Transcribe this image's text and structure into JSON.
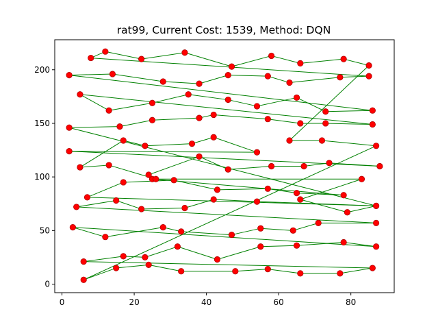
{
  "chart_data": {
    "type": "line",
    "title": "rat99, Current Cost: 1539, Method: DQN",
    "xlabel": "",
    "ylabel": "",
    "xlim": [
      -2,
      92
    ],
    "ylim": [
      -8,
      228
    ],
    "xticks": [
      0,
      20,
      40,
      60,
      80
    ],
    "yticks": [
      0,
      50,
      100,
      150,
      200
    ],
    "grid": false,
    "line_color": "#008000",
    "marker_color": "#ff0000",
    "marker_edge_color": "#b00000",
    "tour": [
      [
        6,
        4
      ],
      [
        15,
        15
      ],
      [
        24,
        18
      ],
      [
        33,
        12
      ],
      [
        48,
        12
      ],
      [
        57,
        14
      ],
      [
        66,
        10
      ],
      [
        77,
        10
      ],
      [
        86,
        15
      ],
      [
        6,
        21
      ],
      [
        17,
        26
      ],
      [
        23,
        25
      ],
      [
        32,
        35
      ],
      [
        43,
        23
      ],
      [
        55,
        35
      ],
      [
        65,
        36
      ],
      [
        78,
        39
      ],
      [
        87,
        35
      ],
      [
        3,
        53
      ],
      [
        12,
        44
      ],
      [
        28,
        53
      ],
      [
        33,
        49
      ],
      [
        47,
        46
      ],
      [
        55,
        52
      ],
      [
        64,
        50
      ],
      [
        71,
        57
      ],
      [
        87,
        57
      ],
      [
        4,
        72
      ],
      [
        15,
        78
      ],
      [
        22,
        70
      ],
      [
        34,
        71
      ],
      [
        42,
        79
      ],
      [
        54,
        77
      ],
      [
        87,
        73
      ],
      [
        7,
        81
      ],
      [
        17,
        95
      ],
      [
        31,
        97
      ],
      [
        43,
        88
      ],
      [
        57,
        89
      ],
      [
        65,
        85
      ],
      [
        78,
        83
      ],
      [
        25,
        98
      ],
      [
        24,
        102
      ],
      [
        38,
        119
      ],
      [
        46,
        107
      ],
      [
        58,
        110
      ],
      [
        67,
        110
      ],
      [
        74,
        113
      ],
      [
        88,
        110
      ],
      [
        2,
        124
      ],
      [
        54,
        123
      ],
      [
        42,
        137
      ],
      [
        36,
        131
      ],
      [
        23,
        129
      ],
      [
        17,
        134
      ],
      [
        5,
        109
      ],
      [
        13,
        111
      ],
      [
        26,
        98
      ],
      [
        83,
        98
      ],
      [
        66,
        79
      ],
      [
        79,
        67
      ],
      [
        87,
        73
      ],
      [
        2,
        146
      ],
      [
        16,
        147
      ],
      [
        25,
        153
      ],
      [
        38,
        155
      ],
      [
        42,
        158
      ],
      [
        57,
        154
      ],
      [
        66,
        150
      ],
      [
        73,
        150
      ],
      [
        86,
        149
      ],
      [
        5,
        177
      ],
      [
        13,
        162
      ],
      [
        25,
        169
      ],
      [
        35,
        177
      ],
      [
        46,
        172
      ],
      [
        54,
        166
      ],
      [
        65,
        174
      ],
      [
        73,
        161
      ],
      [
        86,
        162
      ],
      [
        2,
        195
      ],
      [
        14,
        196
      ],
      [
        28,
        189
      ],
      [
        38,
        187
      ],
      [
        46,
        195
      ],
      [
        57,
        194
      ],
      [
        63,
        188
      ],
      [
        77,
        193
      ],
      [
        85,
        194
      ],
      [
        8,
        211
      ],
      [
        12,
        217
      ],
      [
        22,
        210
      ],
      [
        34,
        216
      ],
      [
        47,
        203
      ],
      [
        58,
        213
      ],
      [
        66,
        206
      ],
      [
        78,
        210
      ],
      [
        85,
        204
      ],
      [
        63,
        134
      ],
      [
        72,
        134
      ],
      [
        87,
        129
      ]
    ]
  }
}
